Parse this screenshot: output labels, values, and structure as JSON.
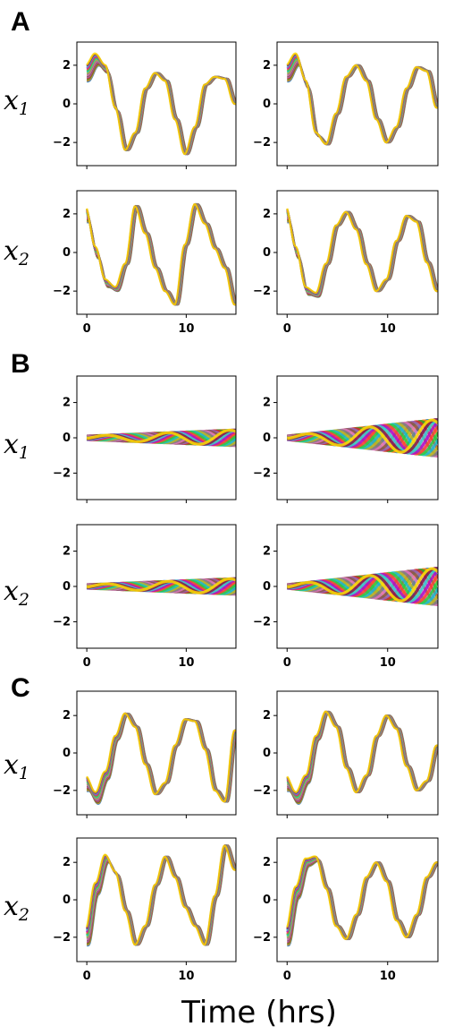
{
  "xlabel": "Time (hrs)",
  "row_labels": {
    "x1": {
      "main": "x",
      "sub": "1"
    },
    "x2": {
      "main": "x",
      "sub": "2"
    }
  },
  "series_colors": [
    "#1f77b4",
    "#ff7f0e",
    "#2ca02c",
    "#d62728",
    "#9467bd",
    "#8c564b",
    "#e377c2",
    "#7f7f7f",
    "#bcbd22",
    "#17becf",
    "#2ecc40",
    "#ff4136",
    "#b10dc9",
    "#39cccc",
    "#85144b",
    "#ffdc00",
    "#3d9970",
    "#f012be",
    "#0074d9",
    "#a0522d"
  ],
  "chart_data": [
    {
      "type": "line",
      "panel": "A",
      "row": "x1",
      "col": 1,
      "title": "",
      "xlabel": "",
      "ylabel": "",
      "xlim": [
        -1,
        15
      ],
      "ylim": [
        -3.2,
        3.2
      ],
      "xticks": [
        0,
        10
      ],
      "yticks": [
        2,
        0,
        -2
      ],
      "show_x_ticklabels": false,
      "x": [
        0,
        15
      ],
      "spread": "narrow",
      "envelope": [
        [
          0,
          1.6
        ],
        [
          1,
          2.3
        ],
        [
          2,
          1.8
        ],
        [
          3,
          -0.3
        ],
        [
          4,
          -2.4
        ],
        [
          5,
          -1.5
        ],
        [
          6,
          0.8
        ],
        [
          7,
          1.6
        ],
        [
          8,
          1.2
        ],
        [
          9,
          -0.8
        ],
        [
          10,
          -2.6
        ],
        [
          11,
          -1.2
        ],
        [
          12,
          1.0
        ],
        [
          13,
          1.4
        ],
        [
          14,
          1.3
        ],
        [
          15,
          0.0
        ]
      ]
    },
    {
      "type": "line",
      "panel": "A",
      "row": "x1",
      "col": 2,
      "title": "",
      "xlabel": "",
      "ylabel": "",
      "xlim": [
        -1,
        15
      ],
      "ylim": [
        -3.2,
        3.2
      ],
      "xticks": [
        0,
        10
      ],
      "yticks": [
        2,
        0,
        -2
      ],
      "show_x_ticklabels": false,
      "x": [
        0,
        15
      ],
      "spread": "narrow",
      "envelope": [
        [
          0,
          1.6
        ],
        [
          1,
          2.3
        ],
        [
          2,
          1.0
        ],
        [
          3,
          -1.6
        ],
        [
          4,
          -2.1
        ],
        [
          5,
          -0.5
        ],
        [
          6,
          1.4
        ],
        [
          7,
          2.0
        ],
        [
          8,
          1.2
        ],
        [
          9,
          -0.8
        ],
        [
          10,
          -2.0
        ],
        [
          11,
          -1.2
        ],
        [
          12,
          0.8
        ],
        [
          13,
          1.9
        ],
        [
          14,
          1.7
        ],
        [
          15,
          -0.2
        ]
      ]
    },
    {
      "type": "line",
      "panel": "A",
      "row": "x2",
      "col": 1,
      "title": "",
      "xlabel": "",
      "ylabel": "",
      "xlim": [
        -1,
        15
      ],
      "ylim": [
        -3.2,
        3.2
      ],
      "xticks": [
        0,
        10
      ],
      "yticks": [
        2,
        0,
        -2
      ],
      "show_x_ticklabels": true,
      "x": [
        0,
        15
      ],
      "spread": "narrow",
      "envelope": [
        [
          0,
          2.0
        ],
        [
          1,
          0.0
        ],
        [
          2,
          -1.6
        ],
        [
          3,
          -1.9
        ],
        [
          4,
          -0.6
        ],
        [
          5,
          2.4
        ],
        [
          6,
          1.0
        ],
        [
          7,
          -0.8
        ],
        [
          8,
          -2.0
        ],
        [
          9,
          -2.7
        ],
        [
          10,
          0.4
        ],
        [
          11,
          2.5
        ],
        [
          12,
          1.5
        ],
        [
          13,
          0.2
        ],
        [
          14,
          -0.8
        ],
        [
          15,
          -2.7
        ]
      ]
    },
    {
      "type": "line",
      "panel": "A",
      "row": "x2",
      "col": 2,
      "title": "",
      "xlabel": "",
      "ylabel": "",
      "xlim": [
        -1,
        15
      ],
      "ylim": [
        -3.2,
        3.2
      ],
      "xticks": [
        0,
        10
      ],
      "yticks": [
        2,
        0,
        -2
      ],
      "show_x_ticklabels": true,
      "x": [
        0,
        15
      ],
      "spread": "narrow",
      "envelope": [
        [
          0,
          2.0
        ],
        [
          1,
          0.0
        ],
        [
          2,
          -2.0
        ],
        [
          3,
          -2.2
        ],
        [
          4,
          -0.6
        ],
        [
          5,
          1.4
        ],
        [
          6,
          2.1
        ],
        [
          7,
          1.2
        ],
        [
          8,
          -0.6
        ],
        [
          9,
          -2.0
        ],
        [
          10,
          -1.4
        ],
        [
          11,
          0.6
        ],
        [
          12,
          1.9
        ],
        [
          13,
          1.6
        ],
        [
          14,
          -0.5
        ],
        [
          15,
          -2.0
        ]
      ]
    },
    {
      "type": "line",
      "panel": "B",
      "row": "x1",
      "col": 1,
      "title": "",
      "xlabel": "",
      "ylabel": "",
      "xlim": [
        -1,
        15
      ],
      "ylim": [
        -3.5,
        3.5
      ],
      "xticks": [
        0,
        10
      ],
      "yticks": [
        2,
        0,
        -2
      ],
      "show_x_ticklabels": false,
      "x": [
        0,
        15
      ],
      "amp_start": 0.1,
      "amp_end": 0.45,
      "period": 6.2
    },
    {
      "type": "line",
      "panel": "B",
      "row": "x1",
      "col": 2,
      "title": "",
      "xlabel": "",
      "ylabel": "",
      "xlim": [
        -1,
        15
      ],
      "ylim": [
        -3.5,
        3.5
      ],
      "xticks": [
        0,
        10
      ],
      "yticks": [
        2,
        0,
        -2
      ],
      "show_x_ticklabels": false,
      "x": [
        0,
        15
      ],
      "amp_start": 0.1,
      "amp_end": 1.05,
      "period": 6.2
    },
    {
      "type": "line",
      "panel": "B",
      "row": "x2",
      "col": 1,
      "title": "",
      "xlabel": "",
      "ylabel": "",
      "xlim": [
        -1,
        15
      ],
      "ylim": [
        -3.5,
        3.5
      ],
      "xticks": [
        0,
        10
      ],
      "yticks": [
        2,
        0,
        -2
      ],
      "show_x_ticklabels": true,
      "x": [
        0,
        15
      ],
      "amp_start": 0.1,
      "amp_end": 0.45,
      "period": 6.2
    },
    {
      "type": "line",
      "panel": "B",
      "row": "x2",
      "col": 2,
      "title": "",
      "xlabel": "",
      "ylabel": "",
      "xlim": [
        -1,
        15
      ],
      "ylim": [
        -3.5,
        3.5
      ],
      "xticks": [
        0,
        10
      ],
      "yticks": [
        2,
        0,
        -2
      ],
      "show_x_ticklabels": true,
      "x": [
        0,
        15
      ],
      "amp_start": 0.1,
      "amp_end": 1.05,
      "period": 6.2
    },
    {
      "type": "line",
      "panel": "C",
      "row": "x1",
      "col": 1,
      "title": "",
      "xlabel": "",
      "ylabel": "",
      "xlim": [
        -1,
        15
      ],
      "ylim": [
        -3.3,
        3.3
      ],
      "xticks": [
        0,
        10
      ],
      "yticks": [
        2,
        0,
        -2
      ],
      "show_x_ticklabels": false,
      "x": [
        0,
        15
      ],
      "spread": "narrow",
      "envelope": [
        [
          0,
          -1.6
        ],
        [
          1,
          -2.4
        ],
        [
          2,
          -1.2
        ],
        [
          3,
          0.8
        ],
        [
          4,
          2.1
        ],
        [
          5,
          1.4
        ],
        [
          6,
          -0.6
        ],
        [
          7,
          -2.2
        ],
        [
          8,
          -1.6
        ],
        [
          9,
          0.4
        ],
        [
          10,
          1.8
        ],
        [
          11,
          1.7
        ],
        [
          12,
          0.2
        ],
        [
          13,
          -2.0
        ],
        [
          14,
          -2.6
        ],
        [
          15,
          1.2
        ]
      ]
    },
    {
      "type": "line",
      "panel": "C",
      "row": "x1",
      "col": 2,
      "title": "",
      "xlabel": "",
      "ylabel": "",
      "xlim": [
        -1,
        15
      ],
      "ylim": [
        -3.3,
        3.3
      ],
      "xticks": [
        0,
        10
      ],
      "yticks": [
        2,
        0,
        -2
      ],
      "show_x_ticklabels": false,
      "x": [
        0,
        15
      ],
      "spread": "narrow",
      "envelope": [
        [
          0,
          -1.6
        ],
        [
          1,
          -2.4
        ],
        [
          2,
          -1.4
        ],
        [
          3,
          0.8
        ],
        [
          4,
          2.2
        ],
        [
          5,
          1.4
        ],
        [
          6,
          -0.8
        ],
        [
          7,
          -2.1
        ],
        [
          8,
          -1.2
        ],
        [
          9,
          0.9
        ],
        [
          10,
          2.0
        ],
        [
          11,
          1.3
        ],
        [
          12,
          -0.7
        ],
        [
          13,
          -2.0
        ],
        [
          14,
          -1.5
        ],
        [
          15,
          0.4
        ]
      ]
    },
    {
      "type": "line",
      "panel": "C",
      "row": "x2",
      "col": 1,
      "title": "",
      "xlabel": "",
      "ylabel": "",
      "xlim": [
        -1,
        15
      ],
      "ylim": [
        -3.3,
        3.3
      ],
      "xticks": [
        0,
        10
      ],
      "yticks": [
        2,
        0,
        -2
      ],
      "show_x_ticklabels": true,
      "x": [
        0,
        15
      ],
      "spread": "narrow",
      "envelope": [
        [
          0,
          -2.0
        ],
        [
          1,
          0.6
        ],
        [
          2,
          2.2
        ],
        [
          3,
          1.4
        ],
        [
          4,
          -0.6
        ],
        [
          5,
          -2.4
        ],
        [
          6,
          -1.4
        ],
        [
          7,
          0.8
        ],
        [
          8,
          2.3
        ],
        [
          9,
          1.2
        ],
        [
          10,
          -0.4
        ],
        [
          11,
          -1.4
        ],
        [
          12,
          -2.4
        ],
        [
          13,
          0.2
        ],
        [
          14,
          2.9
        ],
        [
          15,
          1.6
        ]
      ]
    },
    {
      "type": "line",
      "panel": "C",
      "row": "x2",
      "col": 2,
      "title": "",
      "xlabel": "",
      "ylabel": "",
      "xlim": [
        -1,
        15
      ],
      "ylim": [
        -3.3,
        3.3
      ],
      "xticks": [
        0,
        10
      ],
      "yticks": [
        2,
        0,
        -2
      ],
      "show_x_ticklabels": true,
      "x": [
        0,
        15
      ],
      "spread": "narrow",
      "envelope": [
        [
          0,
          -2.0
        ],
        [
          1,
          0.4
        ],
        [
          2,
          2.0
        ],
        [
          3,
          2.2
        ],
        [
          4,
          0.6
        ],
        [
          5,
          -1.4
        ],
        [
          6,
          -2.1
        ],
        [
          7,
          -0.8
        ],
        [
          8,
          1.2
        ],
        [
          9,
          2.0
        ],
        [
          10,
          1.0
        ],
        [
          11,
          -1.1
        ],
        [
          12,
          -2.0
        ],
        [
          13,
          -0.8
        ],
        [
          14,
          1.2
        ],
        [
          15,
          2.0
        ]
      ]
    }
  ]
}
